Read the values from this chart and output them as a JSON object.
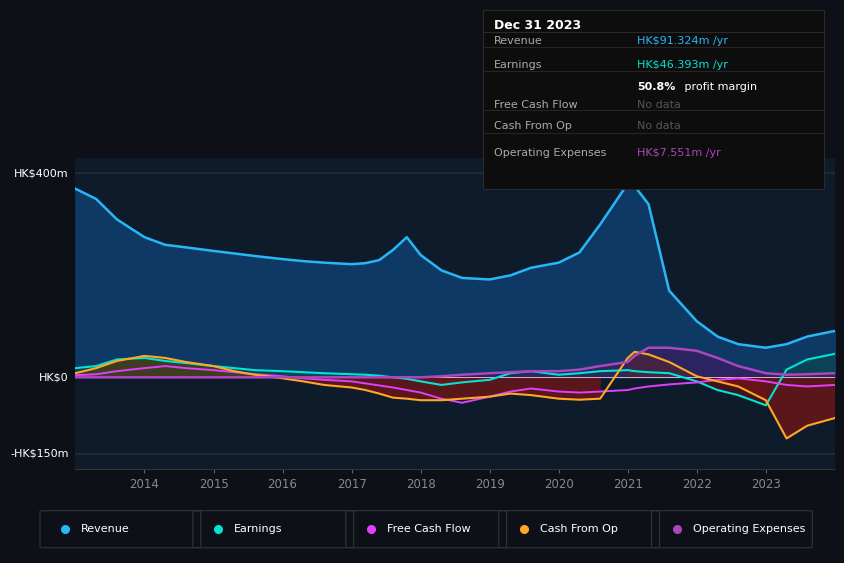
{
  "bg_color": "#0d1117",
  "plot_bg_color": "#0d1b2a",
  "text_color": "#ffffff",
  "ylabel_400": "HK$400m",
  "ylabel_0": "HK$0",
  "ylabel_neg150": "-HK$150m",
  "years": [
    2013.0,
    2013.3,
    2013.6,
    2014.0,
    2014.3,
    2014.6,
    2015.0,
    2015.3,
    2015.6,
    2016.0,
    2016.3,
    2016.6,
    2017.0,
    2017.2,
    2017.4,
    2017.6,
    2017.8,
    2018.0,
    2018.3,
    2018.6,
    2019.0,
    2019.3,
    2019.6,
    2020.0,
    2020.3,
    2020.6,
    2021.0,
    2021.1,
    2021.3,
    2021.6,
    2022.0,
    2022.3,
    2022.6,
    2023.0,
    2023.3,
    2023.6,
    2024.0
  ],
  "revenue": [
    370,
    350,
    310,
    275,
    260,
    255,
    248,
    243,
    238,
    232,
    228,
    225,
    222,
    224,
    230,
    250,
    275,
    240,
    210,
    195,
    192,
    200,
    215,
    225,
    245,
    300,
    380,
    375,
    340,
    170,
    110,
    80,
    65,
    58,
    65,
    80,
    91
  ],
  "earnings": [
    18,
    22,
    35,
    38,
    32,
    28,
    22,
    18,
    14,
    12,
    10,
    8,
    6,
    5,
    3,
    0,
    -3,
    -8,
    -15,
    -10,
    -5,
    8,
    12,
    5,
    8,
    12,
    14,
    12,
    10,
    8,
    -8,
    -25,
    -35,
    -55,
    15,
    35,
    46
  ],
  "free_cash_flow": [
    4,
    6,
    12,
    18,
    22,
    18,
    14,
    10,
    6,
    2,
    -2,
    -5,
    -8,
    -12,
    -16,
    -20,
    -25,
    -30,
    -42,
    -50,
    -38,
    -28,
    -22,
    -28,
    -30,
    -28,
    -25,
    -22,
    -18,
    -14,
    -10,
    -5,
    -2,
    -8,
    -15,
    -18,
    -15
  ],
  "cash_from_op": [
    8,
    18,
    32,
    42,
    38,
    30,
    22,
    12,
    5,
    -2,
    -8,
    -15,
    -20,
    -25,
    -32,
    -40,
    -42,
    -45,
    -45,
    -42,
    -38,
    -32,
    -35,
    -42,
    -44,
    -42,
    38,
    50,
    45,
    30,
    2,
    -8,
    -18,
    -45,
    -120,
    -95,
    -80
  ],
  "operating_expenses": [
    0,
    0,
    0,
    0,
    0,
    0,
    0,
    0,
    0,
    0,
    0,
    0,
    0,
    0,
    0,
    0,
    0,
    0,
    2,
    5,
    8,
    10,
    12,
    12,
    15,
    22,
    30,
    42,
    58,
    58,
    52,
    38,
    22,
    8,
    5,
    6,
    8
  ],
  "colors": {
    "revenue": "#29b6f6",
    "earnings": "#00e5d4",
    "free_cash_flow": "#e040fb",
    "cash_from_op": "#ffa726",
    "operating_expenses": "#ab47bc"
  },
  "x_ticks": [
    2014,
    2015,
    2016,
    2017,
    2018,
    2019,
    2020,
    2021,
    2022,
    2023
  ],
  "tooltip": {
    "date": "Dec 31 2023",
    "revenue_val": "HK$91.324m",
    "revenue_color": "#29b6f6",
    "earnings_val": "HK$46.393m",
    "earnings_color": "#00e5d4",
    "profit_margin_pct": "50.8%",
    "free_cash_flow_val": "No data",
    "cash_from_op_val": "No data",
    "operating_expenses_val": "HK$7.551m",
    "operating_expenses_color": "#ab47bc",
    "no_data_color": "#555555"
  },
  "legend": [
    {
      "label": "Revenue",
      "color": "#29b6f6"
    },
    {
      "label": "Earnings",
      "color": "#00e5d4"
    },
    {
      "label": "Free Cash Flow",
      "color": "#e040fb"
    },
    {
      "label": "Cash From Op",
      "color": "#ffa726"
    },
    {
      "label": "Operating Expenses",
      "color": "#ab47bc"
    }
  ]
}
